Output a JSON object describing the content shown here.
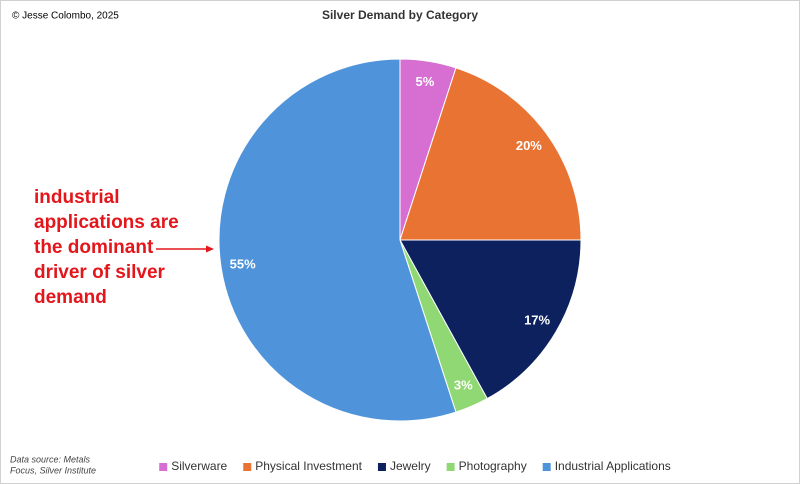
{
  "chart_data": {
    "type": "pie",
    "title": "Silver Demand by Category",
    "credit": "© Jesse Colombo, 2025",
    "annotation": [
      "industrial",
      "applications are",
      "the dominant",
      "driver of silver",
      "demand"
    ],
    "source": [
      "Data source: Metals",
      "Focus, Silver Institute"
    ],
    "categories": [
      "Silverware",
      "Physical Investment",
      "Jewelry",
      "Photography",
      "Industrial Applications"
    ],
    "values": [
      5,
      20,
      17,
      3,
      55
    ],
    "value_labels": [
      "5%",
      "20%",
      "17%",
      "3%",
      "55%"
    ],
    "colors": [
      "#d66fd1",
      "#e97333",
      "#0c215e",
      "#8fd873",
      "#4f94da"
    ],
    "legend": "bottom"
  }
}
